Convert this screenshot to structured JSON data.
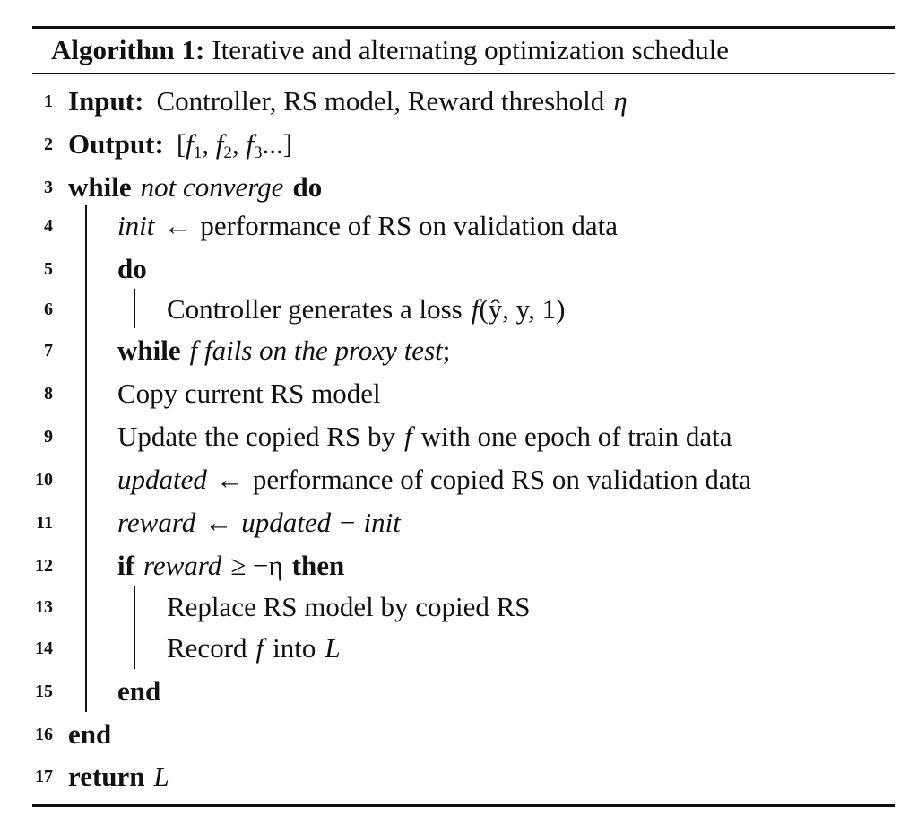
{
  "algorithm": {
    "label": "Algorithm 1:",
    "title": "Iterative and alternating optimization schedule"
  },
  "lines": [
    {
      "num": "1",
      "kw": "Input:",
      "text": "Controller, RS model, Reward threshold",
      "math": "η"
    },
    {
      "num": "2",
      "kw": "Output:",
      "open": "[",
      "f1": "f",
      "s1": "1",
      "f2": "f",
      "s2": "2",
      "f3": "f",
      "s3": "3",
      "tail": "...]"
    },
    {
      "num": "3",
      "kw1": "while",
      "cond": "not converge",
      "kw2": "do"
    },
    {
      "num": "4",
      "var": "init",
      "arrow": "←",
      "text": "performance of RS on validation data"
    },
    {
      "num": "5",
      "kw": "do"
    },
    {
      "num": "6",
      "text": "Controller generates a loss",
      "fn": "f",
      "args": "(ŷ, y, 1)"
    },
    {
      "num": "7",
      "kw": "while",
      "cond": "f fails on the proxy test",
      "tail": ";"
    },
    {
      "num": "8",
      "text": "Copy current RS model"
    },
    {
      "num": "9",
      "text1": "Update the copied RS by",
      "fn": "f",
      "text2": "with one epoch of train data"
    },
    {
      "num": "10",
      "var": "updated",
      "arrow": "←",
      "text": "performance of copied RS on validation data"
    },
    {
      "num": "11",
      "var": "reward",
      "arrow": "←",
      "expr": "updated − init"
    },
    {
      "num": "12",
      "kw1": "if",
      "cond": "reward",
      "op": "≥ −η",
      "kw2": "then"
    },
    {
      "num": "13",
      "text": "Replace RS model by copied RS"
    },
    {
      "num": "14",
      "text1": "Record",
      "fn": "f",
      "text2": "into",
      "var": "L"
    },
    {
      "num": "15",
      "kw": "end"
    },
    {
      "num": "16",
      "kw": "end"
    },
    {
      "num": "17",
      "kw": "return",
      "var": "L"
    }
  ]
}
